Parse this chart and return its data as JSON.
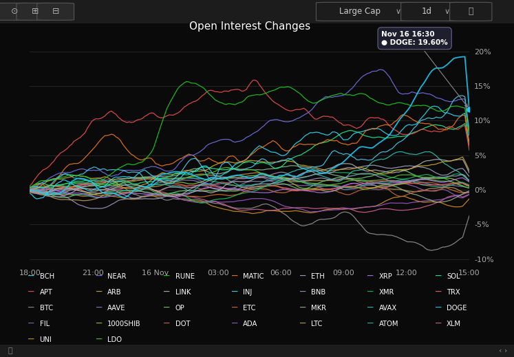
{
  "title": "Open Interest Changes",
  "background_color": "#0a0a0a",
  "x_labels": [
    "18:00",
    "21:00",
    "16 Nov",
    "03:00",
    "06:00",
    "09:00",
    "12:00",
    "15:00"
  ],
  "y_ticks": [
    -10,
    -5,
    0,
    5,
    10,
    15,
    20
  ],
  "y_labels": [
    "-10%",
    "-5%",
    "0%",
    "5%",
    "10%",
    "15%",
    "20%"
  ],
  "ylim": [
    -11,
    22
  ],
  "xlim": [
    0,
    200
  ],
  "legend_cols": [
    [
      {
        "label": "BCH",
        "color": "#4dc8e8"
      },
      {
        "label": "APT",
        "color": "#e85050"
      },
      {
        "label": "BTC",
        "color": "#909090"
      },
      {
        "label": "FIL",
        "color": "#9060b0"
      },
      {
        "label": "UNI",
        "color": "#d09020"
      }
    ],
    [
      {
        "label": "NEAR",
        "color": "#7070e0"
      },
      {
        "label": "ARB",
        "color": "#c8a830"
      },
      {
        "label": "AAVE",
        "color": "#8080b8"
      },
      {
        "label": "1000SHIB",
        "color": "#88c840"
      },
      {
        "label": "LDO",
        "color": "#50c030"
      }
    ],
    [
      {
        "label": "RUNE",
        "color": "#20c820"
      },
      {
        "label": "LINK",
        "color": "#b0b0b0"
      },
      {
        "label": "OP",
        "color": "#70c870"
      },
      {
        "label": "DOT",
        "color": "#c06840"
      }
    ],
    [
      {
        "label": "MATIC",
        "color": "#e87820"
      },
      {
        "label": "INJ",
        "color": "#30d8f0"
      },
      {
        "label": "ETC",
        "color": "#c87030"
      },
      {
        "label": "ADA",
        "color": "#9858c0"
      }
    ],
    [
      {
        "label": "ETH",
        "color": "#a0a0c0"
      },
      {
        "label": "BNB",
        "color": "#9898b8"
      },
      {
        "label": "MKR",
        "color": "#90b090"
      },
      {
        "label": "LTC",
        "color": "#c09858"
      }
    ],
    [
      {
        "label": "XRP",
        "color": "#b070e0"
      },
      {
        "label": "XMR",
        "color": "#20b860"
      },
      {
        "label": "AVAX",
        "color": "#30c0b0"
      },
      {
        "label": "ATOM",
        "color": "#30b898"
      }
    ],
    [
      {
        "label": "SOL",
        "color": "#20e888"
      },
      {
        "label": "TRX",
        "color": "#e86060"
      },
      {
        "label": "DOGE",
        "color": "#20c8f0"
      },
      {
        "label": "XLM",
        "color": "#d06090"
      }
    ]
  ]
}
